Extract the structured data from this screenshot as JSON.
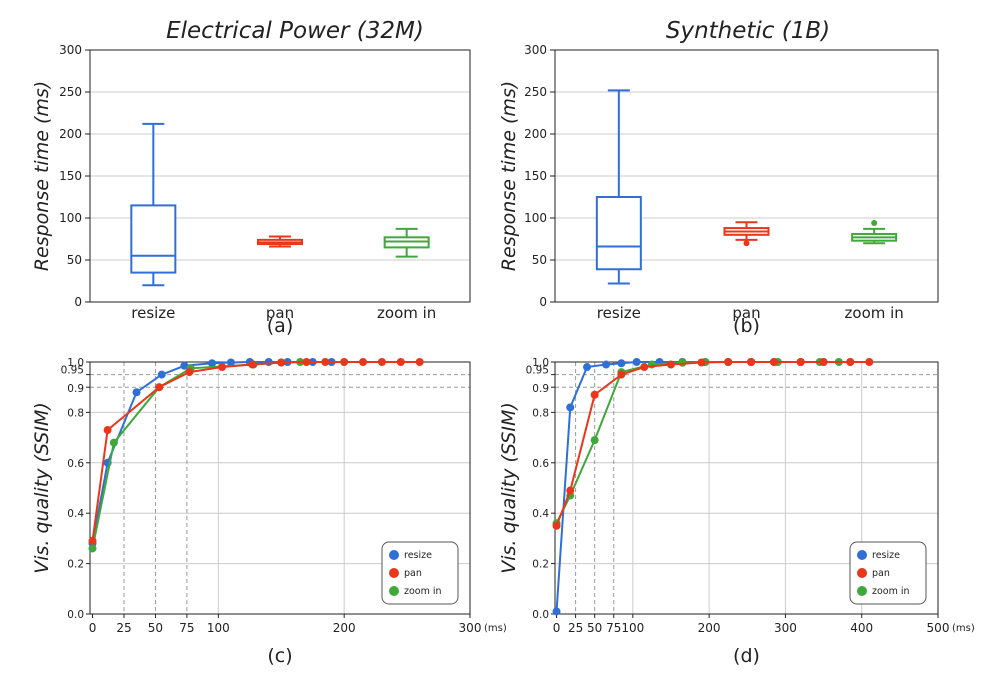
{
  "colors": {
    "resize": "#2f6fd6",
    "pan": "#e8371b",
    "zoom": "#3fa83a",
    "grid": "#cccccc",
    "ref": "#999999"
  },
  "chart_data": [
    {
      "id": "a",
      "type": "box",
      "title": "Electrical Power (32M)",
      "ylabel": "Response time (ms)",
      "sublabel": "(a)",
      "ylim": [
        0,
        300
      ],
      "yticks": [
        0,
        50,
        100,
        150,
        200,
        250,
        300
      ],
      "ytick_labels": [
        "0",
        "50",
        "100",
        "150",
        "200",
        "250",
        "300"
      ],
      "categories": [
        "resize",
        "pan",
        "zoom in"
      ],
      "boxes": [
        {
          "name": "resize",
          "color": "resize",
          "whisker_low": 20,
          "q1": 35,
          "median": 55,
          "q3": 115,
          "whisker_high": 212,
          "outliers": []
        },
        {
          "name": "pan",
          "color": "pan",
          "whisker_low": 66,
          "q1": 69,
          "median": 71,
          "q3": 74,
          "whisker_high": 78,
          "outliers": []
        },
        {
          "name": "zoom in",
          "color": "zoom",
          "whisker_low": 54,
          "q1": 65,
          "median": 72,
          "q3": 77,
          "whisker_high": 87,
          "outliers": []
        }
      ]
    },
    {
      "id": "b",
      "type": "box",
      "title": "Synthetic (1B)",
      "ylabel": "Response time (ms)",
      "sublabel": "(b)",
      "ylim": [
        0,
        300
      ],
      "yticks": [
        0,
        50,
        100,
        150,
        200,
        250,
        300
      ],
      "ytick_labels": [
        "0",
        "50",
        "100",
        "150",
        "200",
        "250",
        "300"
      ],
      "categories": [
        "resize",
        "pan",
        "zoom in"
      ],
      "boxes": [
        {
          "name": "resize",
          "color": "resize",
          "whisker_low": 22,
          "q1": 39,
          "median": 66,
          "q3": 125,
          "whisker_high": 252,
          "outliers": []
        },
        {
          "name": "pan",
          "color": "pan",
          "whisker_low": 74,
          "q1": 80,
          "median": 84,
          "q3": 88,
          "whisker_high": 95,
          "outliers": [
            70
          ]
        },
        {
          "name": "zoom in",
          "color": "zoom",
          "whisker_low": 70,
          "q1": 73,
          "median": 77,
          "q3": 81,
          "whisker_high": 87,
          "outliers": [
            94
          ]
        }
      ]
    },
    {
      "id": "c",
      "type": "line",
      "ylabel": "Vis. quality (SSIM)",
      "sublabel": "(c)",
      "xunit": "(ms)",
      "xlim": [
        -2,
        300
      ],
      "ylim": [
        0,
        1.0
      ],
      "xticks": [
        0,
        25,
        50,
        75,
        100,
        200,
        300
      ],
      "xtick_labels": [
        "0",
        "25",
        "50",
        "75",
        "100",
        "200",
        "300"
      ],
      "xgrid": [
        100,
        200,
        300
      ],
      "yticks": [
        0,
        0.2,
        0.4,
        0.6,
        0.8,
        0.9,
        0.95,
        1.0
      ],
      "ytick_labels": [
        "0.0",
        "0.2",
        "0.4",
        "0.6",
        "0.8",
        "0.9",
        "0.95",
        "1.0"
      ],
      "ref_x": [
        25,
        50,
        75
      ],
      "ref_y": [
        0.9,
        0.95
      ],
      "legend": [
        "resize",
        "pan",
        "zoom in"
      ],
      "series": [
        {
          "name": "resize",
          "color": "resize",
          "x": [
            0,
            12,
            35,
            55,
            73,
            95,
            110,
            125,
            140,
            155,
            175,
            190
          ],
          "y": [
            0.28,
            0.6,
            0.88,
            0.95,
            0.985,
            0.995,
            0.998,
            1.0,
            1.0,
            1.0,
            1.0,
            1.0
          ]
        },
        {
          "name": "pan",
          "color": "pan",
          "x": [
            0,
            12,
            53,
            77,
            103,
            127,
            150,
            170,
            185,
            200,
            215,
            230,
            245,
            260
          ],
          "y": [
            0.29,
            0.73,
            0.9,
            0.96,
            0.98,
            0.99,
            0.998,
            1.0,
            1.0,
            1.0,
            1.0,
            1.0,
            1.0,
            1.0
          ]
        },
        {
          "name": "zoom in",
          "color": "zoom",
          "x": [
            0,
            17,
            53,
            78,
            128,
            150,
            165
          ],
          "y": [
            0.26,
            0.68,
            0.9,
            0.975,
            0.99,
            0.998,
            1.0
          ]
        }
      ]
    },
    {
      "id": "d",
      "type": "line",
      "ylabel": "Vis. quality (SSIM)",
      "sublabel": "(d)",
      "xunit": "(ms)",
      "xlim": [
        -2,
        500
      ],
      "ylim": [
        0,
        1.0
      ],
      "xticks": [
        0,
        25,
        50,
        75,
        100,
        200,
        300,
        400,
        500
      ],
      "xtick_labels": [
        "0",
        "25",
        "50",
        "75",
        "100",
        "200",
        "300",
        "400",
        "500"
      ],
      "xgrid": [
        100,
        200,
        300,
        400,
        500
      ],
      "yticks": [
        0,
        0.2,
        0.4,
        0.6,
        0.8,
        0.9,
        0.95,
        1.0
      ],
      "ytick_labels": [
        "0.0",
        "0.2",
        "0.4",
        "0.6",
        "0.8",
        "0.9",
        "0.95",
        "1.0"
      ],
      "ref_x": [
        25,
        50,
        75
      ],
      "ref_y": [
        0.9,
        0.95
      ],
      "legend": [
        "resize",
        "pan",
        "zoom in"
      ],
      "series": [
        {
          "name": "resize",
          "color": "resize",
          "x": [
            0,
            18,
            40,
            65,
            85,
            105,
            135,
            165,
            195,
            225,
            255,
            285,
            320,
            350
          ],
          "y": [
            0.01,
            0.82,
            0.98,
            0.99,
            0.995,
            1.0,
            1.0,
            1.0,
            1.0,
            1.0,
            1.0,
            1.0,
            1.0,
            1.0
          ]
        },
        {
          "name": "pan",
          "color": "pan",
          "x": [
            0,
            18,
            50,
            85,
            115,
            150,
            190,
            225,
            255,
            285,
            320,
            350,
            385,
            410
          ],
          "y": [
            0.35,
            0.49,
            0.87,
            0.95,
            0.98,
            0.99,
            0.998,
            1.0,
            1.0,
            1.0,
            1.0,
            1.0,
            1.0,
            1.0
          ]
        },
        {
          "name": "zoom in",
          "color": "zoom",
          "x": [
            0,
            18,
            50,
            85,
            125,
            165,
            195,
            225,
            255,
            290,
            320,
            345,
            370,
            385
          ],
          "y": [
            0.36,
            0.47,
            0.69,
            0.96,
            0.99,
            0.997,
            1.0,
            1.0,
            1.0,
            1.0,
            1.0,
            1.0,
            1.0,
            1.0
          ]
        }
      ]
    }
  ]
}
